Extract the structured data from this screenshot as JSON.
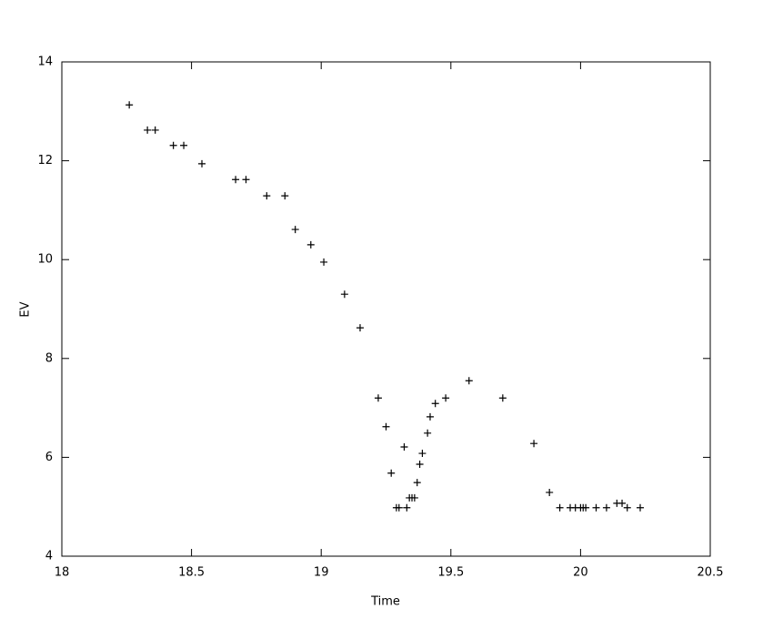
{
  "chart_data": {
    "type": "scatter",
    "x_label": "Time",
    "y_label": "EV",
    "color": "#000000",
    "xlim": [
      18,
      20.5
    ],
    "ylim": [
      4,
      14
    ],
    "xticks": [
      18,
      18.5,
      19,
      19.5,
      20,
      20.5
    ],
    "yticks": [
      4,
      6,
      8,
      10,
      12,
      14
    ],
    "series": [
      {
        "x": [
          18.26,
          18.33,
          18.36,
          18.43,
          18.47,
          18.54,
          18.67,
          18.71,
          18.79,
          18.86,
          18.9,
          18.96,
          19.01,
          19.09,
          19.15,
          19.22,
          19.25,
          19.27,
          19.32,
          19.29,
          19.3,
          19.33,
          19.34,
          19.35,
          19.36,
          19.37,
          19.38,
          19.39,
          19.41,
          19.42,
          19.44,
          19.48,
          19.57,
          19.7,
          19.82,
          19.88,
          19.92,
          19.96,
          19.98,
          20.0,
          20.01,
          20.02,
          20.06,
          20.1,
          20.14,
          20.16,
          20.18,
          20.23
        ],
        "values": [
          13.13,
          12.62,
          12.62,
          12.31,
          12.31,
          11.94,
          11.62,
          11.62,
          11.29,
          11.29,
          10.61,
          10.3,
          9.95,
          9.3,
          8.62,
          7.2,
          6.62,
          5.68,
          6.21,
          4.98,
          4.98,
          4.98,
          5.18,
          5.18,
          5.18,
          5.49,
          5.86,
          6.08,
          6.49,
          6.82,
          7.09,
          7.2,
          7.55,
          7.2,
          6.28,
          5.29,
          4.98,
          4.98,
          4.98,
          4.98,
          4.98,
          4.98,
          4.98,
          4.98,
          5.07,
          5.07,
          4.98,
          4.98
        ]
      }
    ]
  }
}
